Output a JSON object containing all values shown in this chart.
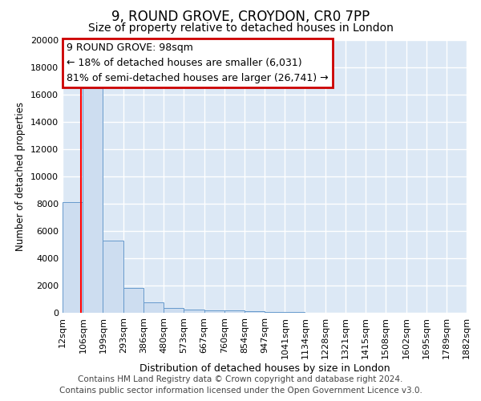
{
  "title1": "9, ROUND GROVE, CROYDON, CR0 7PP",
  "title2": "Size of property relative to detached houses in London",
  "xlabel": "Distribution of detached houses by size in London",
  "ylabel": "Number of detached properties",
  "footnote1": "Contains HM Land Registry data © Crown copyright and database right 2024.",
  "footnote2": "Contains public sector information licensed under the Open Government Licence v3.0.",
  "bin_edges": [
    12,
    106,
    199,
    293,
    386,
    480,
    573,
    667,
    760,
    854,
    947,
    1041,
    1134,
    1228,
    1321,
    1415,
    1508,
    1602,
    1695,
    1789,
    1882
  ],
  "bar_heights": [
    8100,
    16500,
    5300,
    1850,
    750,
    350,
    250,
    200,
    200,
    100,
    50,
    30,
    20,
    15,
    10,
    8,
    6,
    5,
    4,
    3
  ],
  "bar_color": "#cdddf0",
  "bar_edge_color": "#6699cc",
  "bg_color": "#dce8f5",
  "grid_color": "#ffffff",
  "fig_bg_color": "#ffffff",
  "red_line_x": 98,
  "annotation_text": "9 ROUND GROVE: 98sqm\n← 18% of detached houses are smaller (6,031)\n81% of semi-detached houses are larger (26,741) →",
  "annotation_box_color": "#ffffff",
  "annotation_border_color": "#cc0000",
  "ylim": [
    0,
    20000
  ],
  "yticks": [
    0,
    2000,
    4000,
    6000,
    8000,
    10000,
    12000,
    14000,
    16000,
    18000,
    20000
  ],
  "title1_fontsize": 12,
  "title2_fontsize": 10,
  "xlabel_fontsize": 9,
  "ylabel_fontsize": 8.5,
  "tick_fontsize": 8,
  "annotation_fontsize": 9,
  "footnote_fontsize": 7.5
}
